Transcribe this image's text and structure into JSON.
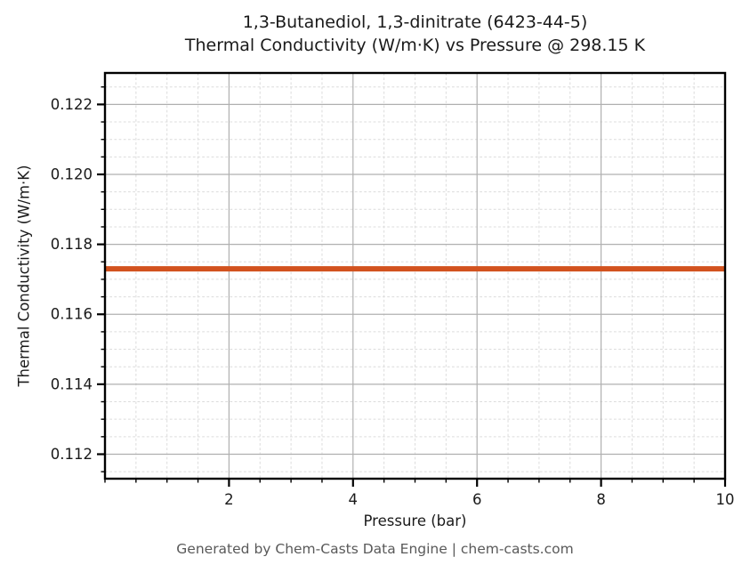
{
  "page": {
    "footer": "Generated by Chem-Casts Data Engine | chem-casts.com"
  },
  "chart_data": {
    "type": "line",
    "title": "1,3-Butanediol, 1,3-dinitrate (6423-44-5)\nThermal Conductivity (W/m·K) vs Pressure @ 298.15 K",
    "xlabel": "Pressure (bar)",
    "ylabel": "Thermal Conductivity (W/m·K)",
    "xlim": [
      0,
      10
    ],
    "ylim": [
      0.1113,
      0.1229
    ],
    "xticks": [
      2,
      4,
      6,
      8,
      10
    ],
    "xtick_labels": [
      "2",
      "4",
      "6",
      "8",
      "10"
    ],
    "yticks": [
      0.112,
      0.114,
      0.116,
      0.118,
      0.12,
      0.122
    ],
    "ytick_labels": [
      "0.112",
      "0.114",
      "0.116",
      "0.118",
      "0.120",
      "0.122"
    ],
    "x_minor_step": 0.5,
    "y_minor_step": 0.0005,
    "grid": true,
    "grid_major_color": "#b0b0b0",
    "grid_minor_color": "#dcdcdc",
    "axis_color": "#000000",
    "series": [
      {
        "name": "Thermal Conductivity",
        "color": "#d2521e",
        "x": [
          0,
          1,
          2,
          3,
          4,
          5,
          6,
          7,
          8,
          9,
          10
        ],
        "y": [
          0.1173,
          0.1173,
          0.1173,
          0.1173,
          0.1173,
          0.1173,
          0.1173,
          0.1173,
          0.1173,
          0.1173,
          0.1173
        ]
      }
    ]
  }
}
